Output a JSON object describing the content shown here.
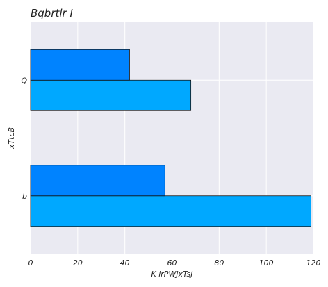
{
  "chart_data": {
    "type": "bar",
    "orientation": "horizontal",
    "title": "Bqbrtlr I",
    "xlabel": "K lrPWJxTsJ",
    "ylabel": "xTtcB",
    "categories": [
      "b",
      "Q"
    ],
    "series": [
      {
        "values": [
          119,
          68
        ],
        "color": "#00a8ff"
      },
      {
        "values": [
          57,
          42
        ],
        "color": "#0083ff"
      }
    ],
    "xlim": [
      0,
      120
    ],
    "xticks": [
      "0",
      "20",
      "40",
      "60",
      "80",
      "100",
      "120"
    ],
    "grid": true,
    "background": "#eaeaf2",
    "legend": "none"
  }
}
